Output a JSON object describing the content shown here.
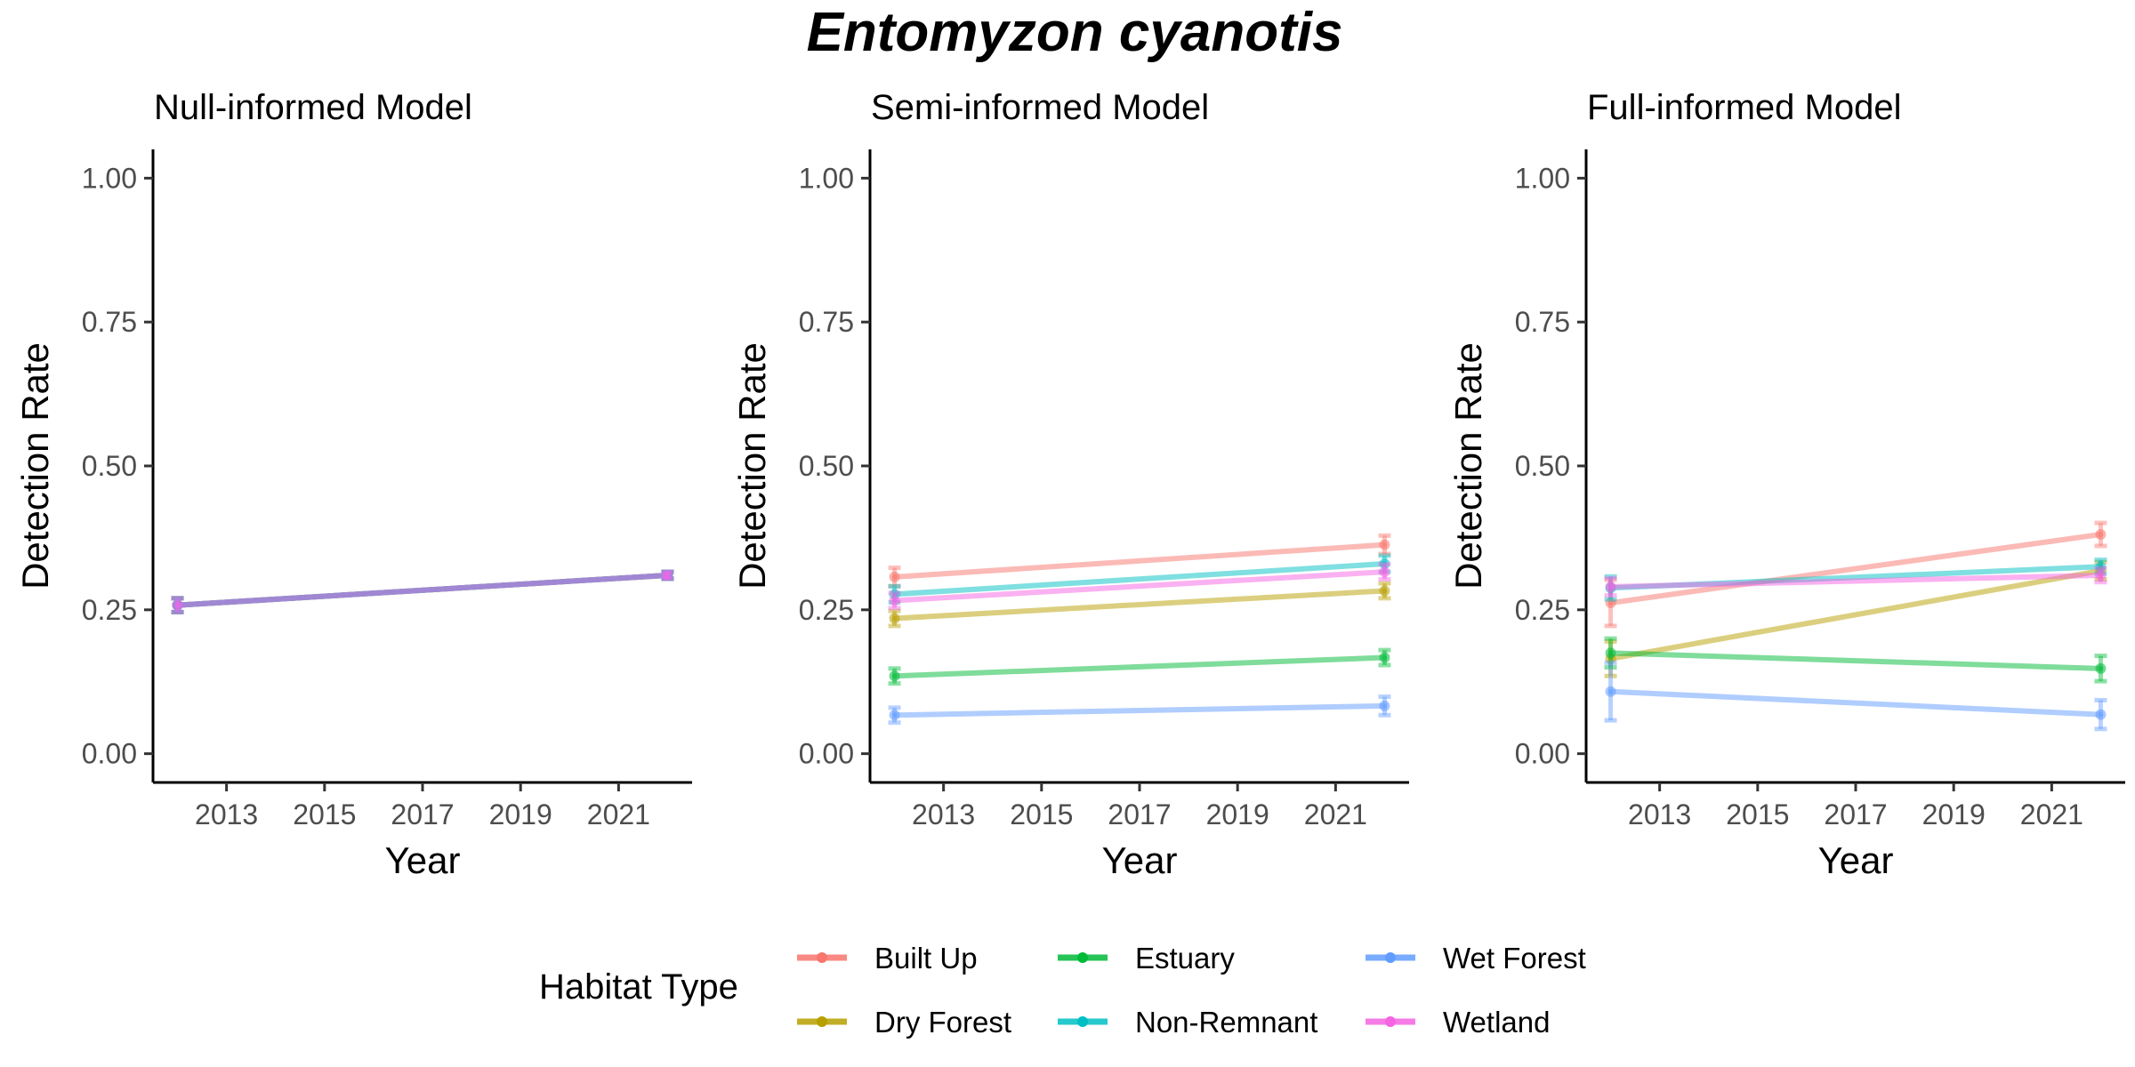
{
  "figure": {
    "title": "Entomyzon cyanotis"
  },
  "chart_data": [
    {
      "type": "line",
      "title": "Null-informed Model",
      "xlabel": "Year",
      "ylabel": "Detection Rate",
      "xlim": [
        2011.5,
        2022.5
      ],
      "ylim": [
        -0.05,
        1.05
      ],
      "xticks": [
        "2013",
        "2015",
        "2017",
        "2019",
        "2021"
      ],
      "yticks": [
        "0.00",
        "0.25",
        "0.50",
        "0.75",
        "1.00"
      ],
      "grid": false,
      "series": [
        {
          "habitat": "Built Up",
          "x": [
            2012,
            2022
          ],
          "y": [
            0.258,
            0.31
          ],
          "err": [
            0.012,
            0.006
          ]
        },
        {
          "habitat": "Dry Forest",
          "x": [
            2012,
            2022
          ],
          "y": [
            0.258,
            0.31
          ],
          "err": [
            0.012,
            0.006
          ]
        },
        {
          "habitat": "Estuary",
          "x": [
            2012,
            2022
          ],
          "y": [
            0.258,
            0.31
          ],
          "err": [
            0.012,
            0.006
          ]
        },
        {
          "habitat": "Non-Remnant",
          "x": [
            2012,
            2022
          ],
          "y": [
            0.258,
            0.31
          ],
          "err": [
            0.012,
            0.006
          ]
        },
        {
          "habitat": "Wet Forest",
          "x": [
            2012,
            2022
          ],
          "y": [
            0.258,
            0.31
          ],
          "err": [
            0.012,
            0.006
          ]
        },
        {
          "habitat": "Wetland",
          "x": [
            2012,
            2022
          ],
          "y": [
            0.258,
            0.31
          ],
          "err": [
            0.012,
            0.006
          ]
        }
      ]
    },
    {
      "type": "line",
      "title": "Semi-informed Model",
      "xlabel": "Year",
      "ylabel": "Detection Rate",
      "xlim": [
        2011.5,
        2022.5
      ],
      "ylim": [
        -0.05,
        1.05
      ],
      "xticks": [
        "2013",
        "2015",
        "2017",
        "2019",
        "2021"
      ],
      "yticks": [
        "0.00",
        "0.25",
        "0.50",
        "0.75",
        "1.00"
      ],
      "grid": false,
      "series": [
        {
          "habitat": "Built Up",
          "x": [
            2012,
            2022
          ],
          "y": [
            0.307,
            0.363
          ],
          "err": [
            0.016,
            0.016
          ]
        },
        {
          "habitat": "Dry Forest",
          "x": [
            2012,
            2022
          ],
          "y": [
            0.235,
            0.283
          ],
          "err": [
            0.013,
            0.013
          ]
        },
        {
          "habitat": "Estuary",
          "x": [
            2012,
            2022
          ],
          "y": [
            0.135,
            0.167
          ],
          "err": [
            0.013,
            0.013
          ]
        },
        {
          "habitat": "Non-Remnant",
          "x": [
            2012,
            2022
          ],
          "y": [
            0.277,
            0.33
          ],
          "err": [
            0.014,
            0.014
          ]
        },
        {
          "habitat": "Wet Forest",
          "x": [
            2012,
            2022
          ],
          "y": [
            0.067,
            0.083
          ],
          "err": [
            0.013,
            0.016
          ]
        },
        {
          "habitat": "Wetland",
          "x": [
            2012,
            2022
          ],
          "y": [
            0.266,
            0.316
          ],
          "err": [
            0.013,
            0.013
          ]
        }
      ]
    },
    {
      "type": "line",
      "title": "Full-informed Model",
      "xlabel": "Year",
      "ylabel": "Detection Rate",
      "xlim": [
        2011.5,
        2022.5
      ],
      "ylim": [
        -0.05,
        1.05
      ],
      "xticks": [
        "2013",
        "2015",
        "2017",
        "2019",
        "2021"
      ],
      "yticks": [
        "0.00",
        "0.25",
        "0.50",
        "0.75",
        "1.00"
      ],
      "grid": false,
      "series": [
        {
          "habitat": "Built Up",
          "x": [
            2012,
            2022
          ],
          "y": [
            0.262,
            0.381
          ],
          "err": [
            0.04,
            0.02
          ]
        },
        {
          "habitat": "Dry Forest",
          "x": [
            2012,
            2022
          ],
          "y": [
            0.165,
            0.318
          ],
          "err": [
            0.03,
            0.015
          ]
        },
        {
          "habitat": "Estuary",
          "x": [
            2012,
            2022
          ],
          "y": [
            0.175,
            0.148
          ],
          "err": [
            0.025,
            0.022
          ]
        },
        {
          "habitat": "Non-Remnant",
          "x": [
            2012,
            2022
          ],
          "y": [
            0.288,
            0.325
          ],
          "err": [
            0.02,
            0.012
          ]
        },
        {
          "habitat": "Wet Forest",
          "x": [
            2012,
            2022
          ],
          "y": [
            0.108,
            0.068
          ],
          "err": [
            0.05,
            0.025
          ]
        },
        {
          "habitat": "Wetland",
          "x": [
            2012,
            2022
          ],
          "y": [
            0.29,
            0.31
          ],
          "err": [
            0.015,
            0.012
          ]
        }
      ]
    }
  ],
  "legend": {
    "title": "Habitat Type",
    "placement": "bottom",
    "items": [
      {
        "label": "Built Up",
        "color": "#F8766D"
      },
      {
        "label": "Dry Forest",
        "color": "#B79F00"
      },
      {
        "label": "Estuary",
        "color": "#00BA38"
      },
      {
        "label": "Non-Remnant",
        "color": "#00BFC4"
      },
      {
        "label": "Wet Forest",
        "color": "#619CFF"
      },
      {
        "label": "Wetland",
        "color": "#F564E3"
      }
    ]
  }
}
